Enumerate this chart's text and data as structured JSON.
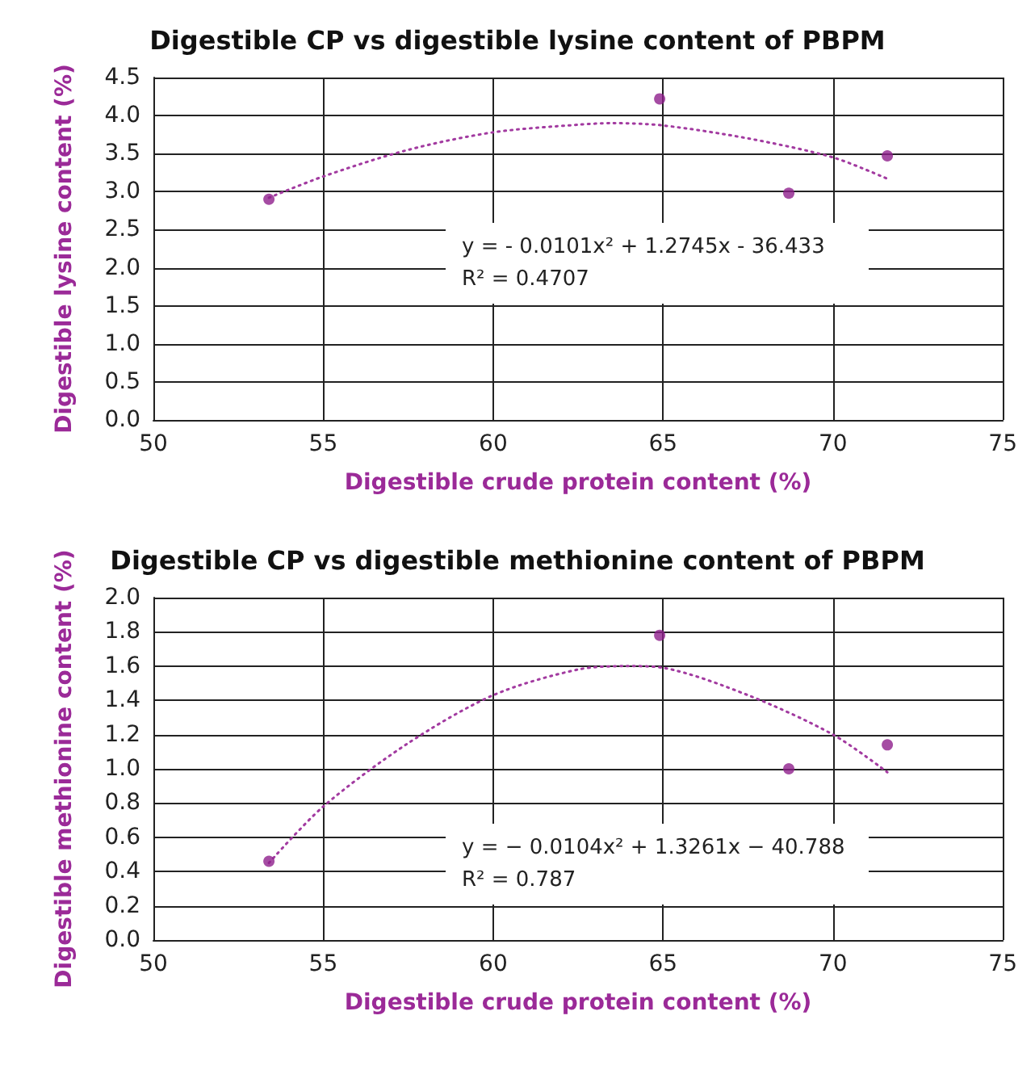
{
  "chart_data": [
    {
      "type": "scatter",
      "title": "Digestible CP vs digestible lysine content of PBPM",
      "xlabel": "Digestible crude protein content (%)",
      "ylabel": "Digestible lysine content (%)",
      "xlim": [
        50,
        75
      ],
      "xticks": [
        50,
        55,
        60,
        65,
        70,
        75
      ],
      "ylim": [
        0,
        4.5
      ],
      "yticks": [
        "0.0",
        0.5,
        "1.0",
        1.5,
        "2.0",
        2.5,
        "3.0",
        3.5,
        "4.0",
        4.5
      ],
      "grid": true,
      "marker": "circle",
      "series": [
        {
          "type": "scatter",
          "color": "#8e1f8c",
          "x": [
            53.4,
            64.9,
            68.7,
            71.6
          ],
          "values": [
            2.9,
            4.22,
            2.98,
            3.47
          ]
        },
        {
          "type": "line",
          "color": "#a23aa0",
          "line_style": "dotted",
          "marker": "none",
          "x": [
            53.4,
            55,
            57.5,
            60,
            62.5,
            63.5,
            65,
            67.5,
            70,
            71.6
          ],
          "values": [
            2.92,
            3.2,
            3.55,
            3.78,
            3.88,
            3.9,
            3.87,
            3.7,
            3.45,
            3.17
          ]
        }
      ],
      "annotations": [
        "y = - 0.0101x² + 1.2745x - 36.433",
        "R² = 0.4707"
      ]
    },
    {
      "type": "scatter",
      "title": "Digestible CP vs digestible methionine content of PBPM",
      "xlabel": "Digestible crude protein content (%)",
      "ylabel": "Digestible methionine content (%)",
      "xlim": [
        50,
        75
      ],
      "xticks": [
        50,
        55,
        60,
        65,
        70,
        75
      ],
      "ylim": [
        0,
        2
      ],
      "yticks": [
        "0.0",
        0.2,
        0.4,
        0.6,
        0.8,
        "1.0",
        1.2,
        1.4,
        1.6,
        1.8,
        "2.0"
      ],
      "grid": true,
      "marker": "circle",
      "series": [
        {
          "type": "scatter",
          "color": "#8e1f8c",
          "x": [
            53.4,
            64.9,
            68.7,
            71.6
          ],
          "values": [
            0.46,
            1.78,
            1.0,
            1.14
          ]
        },
        {
          "type": "line",
          "color": "#a23aa0",
          "line_style": "dotted",
          "marker": "none",
          "x": [
            53.4,
            55,
            57.5,
            60,
            62.5,
            64,
            65,
            67.5,
            70,
            71.6
          ],
          "values": [
            0.45,
            0.78,
            1.15,
            1.43,
            1.58,
            1.6,
            1.59,
            1.43,
            1.2,
            0.98
          ]
        }
      ],
      "annotations": [
        "y = − 0.0104x² + 1.3261x − 40.788",
        "R² = 0.787"
      ]
    }
  ]
}
